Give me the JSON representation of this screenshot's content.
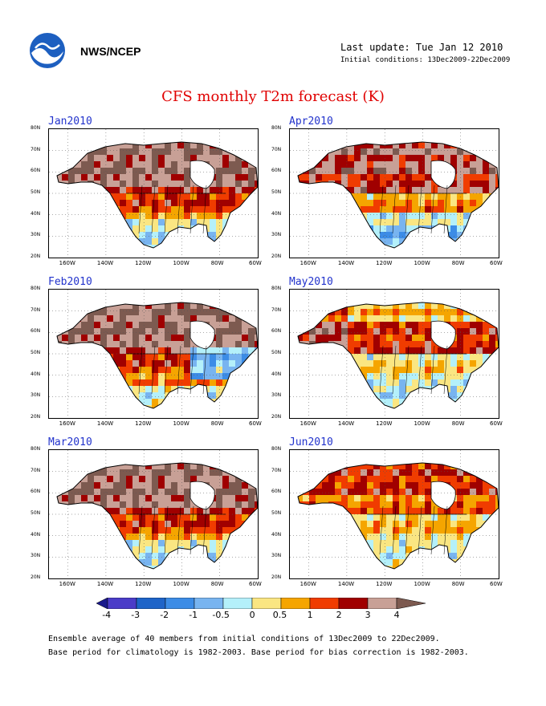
{
  "header": {
    "agency": "NWS/NCEP",
    "last_update": "Last update: Tue Jan 12 2010",
    "initial_conditions": "Initial conditions: 13Dec2009-22Dec2009"
  },
  "title": "CFS monthly T2m forecast (K)",
  "panels": [
    {
      "month": "Jan2010",
      "regime": "strong_north_warm"
    },
    {
      "month": "Apr2010",
      "regime": "north_warm_south_cool"
    },
    {
      "month": "Feb2010",
      "regime": "strong_north_warm_east_cool"
    },
    {
      "month": "May2010",
      "regime": "mixed_mid_warm"
    },
    {
      "month": "Mar2010",
      "regime": "strong_north_warm"
    },
    {
      "month": "Jun2010",
      "regime": "north_warm_mild"
    }
  ],
  "axes": {
    "lat_labels": [
      "80N",
      "70N",
      "60N",
      "50N",
      "40N",
      "30N",
      "20N"
    ],
    "lon_labels": [
      "160W",
      "140W",
      "120W",
      "100W",
      "80W",
      "60W"
    ]
  },
  "colorbar": {
    "labels": [
      "-4",
      "-3",
      "-2",
      "-1",
      "-0.5",
      "0",
      "0.5",
      "1",
      "2",
      "3",
      "4"
    ],
    "colors": [
      "#1a1a8c",
      "#4b3cc8",
      "#1e64c8",
      "#3c8ce6",
      "#78b4f0",
      "#b4f0fa",
      "#fae682",
      "#f5a500",
      "#f03c00",
      "#a00000",
      "#c8a096",
      "#7d5a50"
    ]
  },
  "footer": {
    "line1": "Ensemble average of 40 members from initial conditions of 13Dec2009 to 22Dec2009.",
    "line2": "Base period for climatology is 1982-2003. Base period for bias correction is 1982-2003."
  }
}
